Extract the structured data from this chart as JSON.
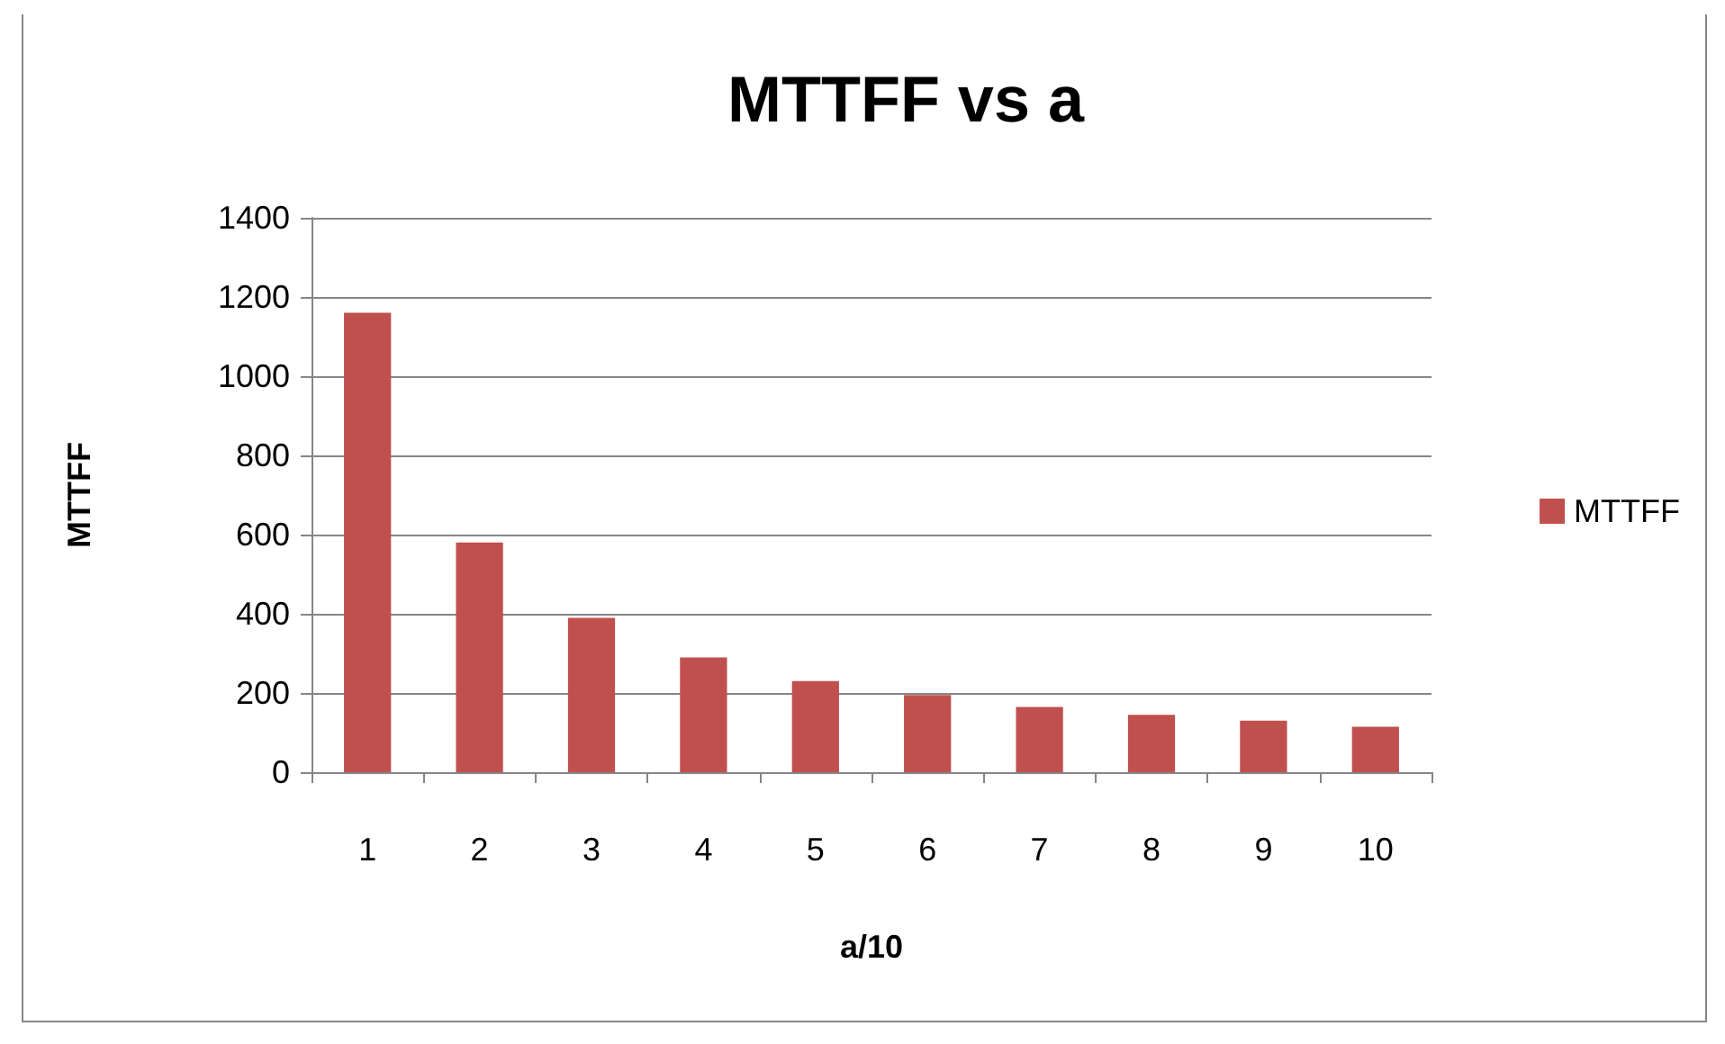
{
  "chart_data": {
    "type": "bar",
    "title": "MTTFF vs a",
    "xlabel": "a/10",
    "ylabel": "MTTFF",
    "categories": [
      "1",
      "2",
      "3",
      "4",
      "5",
      "6",
      "7",
      "8",
      "9",
      "10"
    ],
    "series": [
      {
        "name": "MTTFF",
        "color": "#c0504d",
        "values": [
          1160,
          580,
          390,
          290,
          230,
          195,
          165,
          145,
          130,
          115
        ]
      }
    ],
    "ylim": [
      0,
      1400
    ],
    "yticks": [
      0,
      200,
      400,
      600,
      800,
      1000,
      1200,
      1400
    ],
    "grid": "y",
    "legend": "right"
  }
}
